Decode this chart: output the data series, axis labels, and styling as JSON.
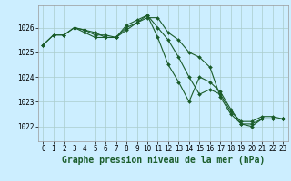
{
  "background_color": "#cceeff",
  "grid_color": "#aacccc",
  "line_color": "#1a5c2a",
  "xlabel": "Graphe pression niveau de la mer (hPa)",
  "xlabel_fontsize": 7,
  "xlabel_fontweight": "bold",
  "xlim": [
    -0.5,
    23.5
  ],
  "ylim": [
    1021.4,
    1026.9
  ],
  "yticks": [
    1022,
    1023,
    1024,
    1025,
    1026
  ],
  "xticks": [
    0,
    1,
    2,
    3,
    4,
    5,
    6,
    7,
    8,
    9,
    10,
    11,
    12,
    13,
    14,
    15,
    16,
    17,
    18,
    19,
    20,
    21,
    22,
    23
  ],
  "tick_fontsize": 5.5,
  "series": [
    {
      "x": [
        0,
        1,
        2,
        3,
        4,
        5,
        6,
        7,
        8,
        9,
        10,
        11,
        12,
        13,
        14,
        15,
        16,
        17,
        18,
        19,
        20,
        21,
        22,
        23
      ],
      "y": [
        1025.3,
        1025.7,
        1025.7,
        1026.0,
        1025.8,
        1025.6,
        1025.6,
        1025.6,
        1025.9,
        1026.2,
        1026.4,
        1026.4,
        1025.8,
        1025.5,
        1025.0,
        1024.8,
        1024.4,
        1023.2,
        1022.5,
        1022.1,
        1022.1,
        1022.3,
        1022.3,
        1022.3
      ]
    },
    {
      "x": [
        0,
        1,
        2,
        3,
        4,
        5,
        6,
        7,
        8,
        9,
        10,
        11,
        12,
        13,
        14,
        15,
        16,
        17,
        18,
        19,
        20,
        21,
        22,
        23
      ],
      "y": [
        1025.3,
        1025.7,
        1025.7,
        1026.0,
        1025.9,
        1025.7,
        1025.7,
        1025.6,
        1026.0,
        1026.2,
        1026.5,
        1026.0,
        1025.5,
        1024.8,
        1024.0,
        1023.3,
        1023.5,
        1023.3,
        1022.6,
        1022.2,
        1022.2,
        1022.4,
        1022.4,
        1022.3
      ]
    },
    {
      "x": [
        3,
        4,
        5,
        6,
        7,
        8,
        9,
        10,
        11,
        12,
        13,
        14,
        15,
        16,
        17,
        18,
        19,
        20,
        21,
        22,
        23
      ],
      "y": [
        1026.0,
        1025.9,
        1025.8,
        1025.6,
        1025.6,
        1026.1,
        1026.3,
        1026.5,
        1025.6,
        1024.5,
        1023.8,
        1023.0,
        1024.0,
        1023.8,
        1023.4,
        1022.7,
        1022.1,
        1022.0,
        1022.3,
        1022.3,
        1022.3
      ]
    }
  ]
}
